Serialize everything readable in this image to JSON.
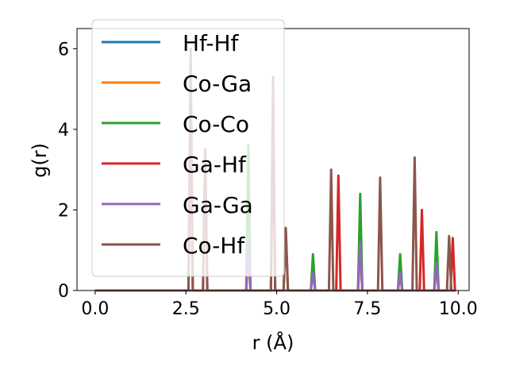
{
  "chart_data": {
    "type": "line",
    "title": "",
    "xlabel": "r (Å)",
    "ylabel": "g(r)",
    "xlim": [
      -0.5,
      10.3
    ],
    "ylim": [
      0,
      6.5
    ],
    "xticks": [
      0.0,
      2.5,
      5.0,
      7.5,
      10.0
    ],
    "xtick_labels": [
      "0.0",
      "2.5",
      "5.0",
      "7.5",
      "10.0"
    ],
    "yticks": [
      0,
      2,
      4,
      6
    ],
    "ytick_labels": [
      "0",
      "2",
      "4",
      "6"
    ],
    "grid": false,
    "legend_position": "top-left",
    "series": [
      {
        "name": "Hf-Hf",
        "color": "#1f77b4",
        "peaks": [
          [
            4.22,
            1.0
          ],
          [
            6.0,
            0.5
          ],
          [
            7.3,
            1.0
          ],
          [
            8.4,
            0.4
          ],
          [
            9.4,
            0.6
          ]
        ]
      },
      {
        "name": "Co-Ga",
        "color": "#ff7f0e",
        "peaks": [
          [
            4.22,
            1.0
          ],
          [
            6.0,
            0.5
          ],
          [
            7.3,
            1.0
          ],
          [
            8.4,
            0.4
          ],
          [
            9.4,
            0.6
          ]
        ]
      },
      {
        "name": "Co-Co",
        "color": "#2ca02c",
        "peaks": [
          [
            4.22,
            3.6
          ],
          [
            6.0,
            0.9
          ],
          [
            7.3,
            2.4
          ],
          [
            8.4,
            0.9
          ],
          [
            9.4,
            1.45
          ]
        ]
      },
      {
        "name": "Ga-Hf",
        "color": "#d62728",
        "peaks": [
          [
            2.63,
            4.0
          ],
          [
            3.03,
            3.5
          ],
          [
            4.9,
            4.0
          ],
          [
            5.25,
            1.55
          ],
          [
            6.7,
            2.85
          ],
          [
            9.0,
            2.0
          ],
          [
            9.85,
            1.3
          ]
        ]
      },
      {
        "name": "Ga-Ga",
        "color": "#9467bd",
        "peaks": [
          [
            4.22,
            1.2
          ],
          [
            6.0,
            0.45
          ],
          [
            7.3,
            1.2
          ],
          [
            8.4,
            0.45
          ],
          [
            9.4,
            0.7
          ]
        ]
      },
      {
        "name": "Co-Hf",
        "color": "#8c564b",
        "peaks": [
          [
            2.63,
            6.0
          ],
          [
            3.03,
            3.5
          ],
          [
            4.9,
            5.3
          ],
          [
            5.25,
            1.55
          ],
          [
            6.5,
            3.0
          ],
          [
            7.85,
            2.8
          ],
          [
            8.8,
            3.3
          ],
          [
            9.75,
            1.35
          ]
        ]
      }
    ]
  }
}
